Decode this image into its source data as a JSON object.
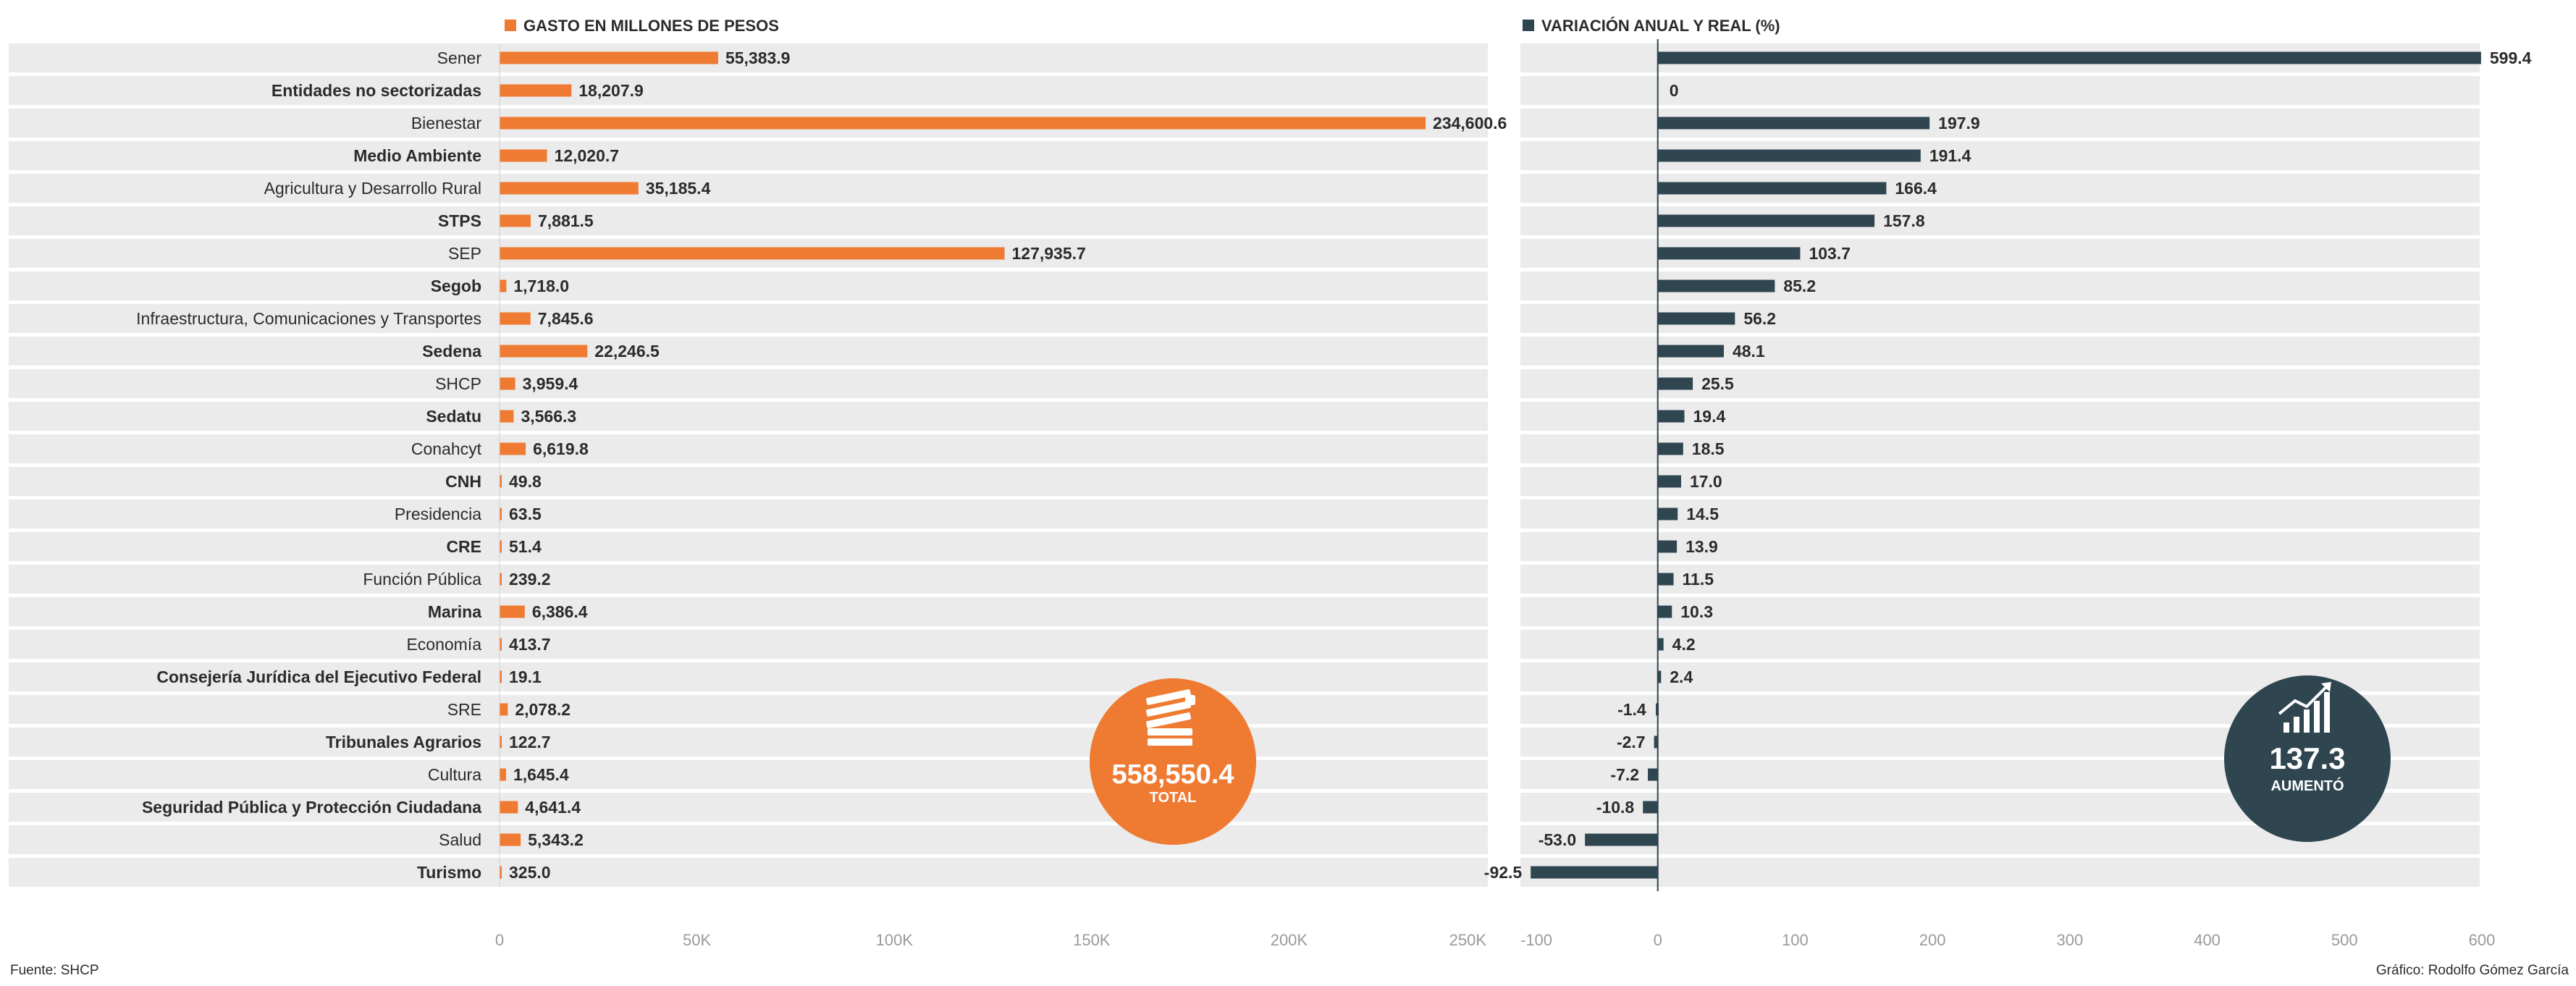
{
  "legend": {
    "left": "GASTO EN MILLONES DE PESOS",
    "right": "VARIACIÓN ANUAL Y REAL (%)"
  },
  "colors": {
    "orange": "#EF7A31",
    "slate": "#2F4550",
    "row_band": "#EBEBEB",
    "axis_text": "#9A9A9A",
    "label_text": "#2B2B2B"
  },
  "badges": {
    "total": {
      "value": "558,550.4",
      "label": "TOTAL",
      "icon": "money-stack-icon",
      "color": "#EF7A31"
    },
    "increase": {
      "value": "137.3",
      "label": "AUMENTÓ",
      "icon": "growth-chart-icon",
      "color": "#2F4550"
    }
  },
  "footer": {
    "source": "Fuente: SHCP",
    "credit": "Gráfico: Rodolfo Gómez García"
  },
  "chart_data": [
    {
      "type": "bar",
      "orientation": "horizontal",
      "series_label": "GASTO EN MILLONES DE PESOS",
      "categories": [
        "Sener",
        "Entidades no sectorizadas",
        "Bienestar",
        "Medio Ambiente",
        "Agricultura y Desarrollo Rural",
        "STPS",
        "SEP",
        "Segob",
        "Infraestructura, Comunicaciones y Transportes",
        "Sedena",
        "SHCP",
        "Sedatu",
        "Conahcyt",
        "CNH",
        "Presidencia",
        "CRE",
        "Función Pública",
        "Marina",
        "Economía",
        "Consejería Jurídica del Ejecutivo Federal",
        "SRE",
        "Tribunales Agrarios",
        "Cultura",
        "Seguridad Pública y Protección Ciudadana",
        "Salud",
        "Turismo"
      ],
      "label_bold": [
        false,
        true,
        false,
        true,
        false,
        true,
        false,
        true,
        false,
        true,
        false,
        true,
        false,
        true,
        false,
        true,
        false,
        true,
        false,
        true,
        false,
        true,
        false,
        true,
        false,
        true
      ],
      "values": [
        55383.9,
        18207.9,
        234600.6,
        12020.7,
        35185.4,
        7881.5,
        127935.7,
        1718.0,
        7845.6,
        22246.5,
        3959.4,
        3566.3,
        6619.8,
        49.8,
        63.5,
        51.4,
        239.2,
        6386.4,
        413.7,
        19.1,
        2078.2,
        122.7,
        1645.4,
        4641.4,
        5343.2,
        325.0
      ],
      "value_labels": [
        "55,383.9",
        "18,207.9",
        "234,600.6",
        "12,020.7",
        "35,185.4",
        "7,881.5",
        "127,935.7",
        "1,718.0",
        "7,845.6",
        "22,246.5",
        "3,959.4",
        "3,566.3",
        "6,619.8",
        "49.8",
        "63.5",
        "51.4",
        "239.2",
        "6,386.4",
        "413.7",
        "19.1",
        "2,078.2",
        "122.7",
        "1,645.4",
        "4,641.4",
        "5,343.2",
        "325.0"
      ],
      "xlim": [
        0,
        250000
      ],
      "xticks": [
        0,
        50000,
        100000,
        150000,
        200000,
        250000
      ],
      "xtick_labels": [
        "0",
        "50K",
        "100K",
        "150K",
        "200K",
        "250K"
      ],
      "grid": false
    },
    {
      "type": "bar",
      "orientation": "horizontal",
      "series_label": "VARIACIÓN ANUAL Y REAL (%)",
      "categories": [
        "Sener",
        "Entidades no sectorizadas",
        "Bienestar",
        "Medio Ambiente",
        "Agricultura y Desarrollo Rural",
        "STPS",
        "SEP",
        "Segob",
        "Infraestructura, Comunicaciones y Transportes",
        "Sedena",
        "SHCP",
        "Sedatu",
        "Conahcyt",
        "CNH",
        "Presidencia",
        "CRE",
        "Función Pública",
        "Marina",
        "Economía",
        "Consejería Jurídica del Ejecutivo Federal",
        "SRE",
        "Tribunales Agrarios",
        "Cultura",
        "Seguridad Pública y Protección Ciudadana",
        "Salud",
        "Turismo"
      ],
      "values": [
        599.4,
        0,
        197.9,
        191.4,
        166.4,
        157.8,
        103.7,
        85.2,
        56.2,
        48.1,
        25.5,
        19.4,
        18.5,
        17.0,
        14.5,
        13.9,
        11.5,
        10.3,
        4.2,
        2.4,
        -1.4,
        -2.7,
        -7.2,
        -10.8,
        -53.0,
        -92.5
      ],
      "value_labels": [
        "599.4",
        "0",
        "197.9",
        "191.4",
        "166.4",
        "157.8",
        "103.7",
        "85.2",
        "56.2",
        "48.1",
        "25.5",
        "19.4",
        "18.5",
        "17.0",
        "14.5",
        "13.9",
        "11.5",
        "10.3",
        "4.2",
        "2.4",
        "-1.4",
        "-2.7",
        "-7.2",
        "-10.8",
        "-53.0",
        "-92.5"
      ],
      "xlim": [
        -100,
        600
      ],
      "xticks": [
        -100,
        0,
        100,
        200,
        300,
        400,
        500,
        600
      ],
      "xtick_labels": [
        "-100",
        "0",
        "100",
        "200",
        "300",
        "400",
        "500",
        "600"
      ],
      "grid": false
    }
  ]
}
